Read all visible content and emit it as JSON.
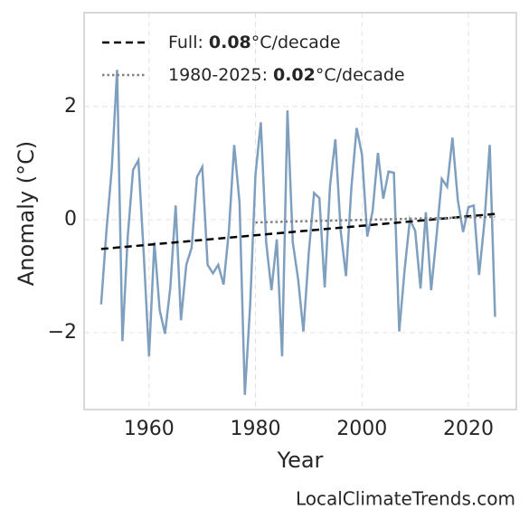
{
  "chart_data": {
    "type": "line",
    "xlabel": "Year",
    "ylabel": "Anomaly (°C)",
    "watermark": "LocalClimateTrends.com",
    "xlim": [
      1947.8,
      2029
    ],
    "ylim": [
      -3.36,
      3.66
    ],
    "xticks": [
      1960,
      1980,
      2000,
      2020
    ],
    "yticks": [
      {
        "value": -2,
        "label": "−2"
      },
      0,
      2
    ],
    "grid": true,
    "legend": "upper left",
    "x": [
      1951,
      1952,
      1953,
      1954,
      1955,
      1956,
      1957,
      1958,
      1959,
      1960,
      1961,
      1962,
      1963,
      1964,
      1965,
      1966,
      1967,
      1968,
      1969,
      1970,
      1971,
      1972,
      1973,
      1974,
      1975,
      1976,
      1977,
      1978,
      1979,
      1980,
      1981,
      1982,
      1983,
      1984,
      1985,
      1986,
      1987,
      1988,
      1989,
      1990,
      1991,
      1992,
      1993,
      1994,
      1995,
      1996,
      1997,
      1998,
      1999,
      2000,
      2001,
      2002,
      2003,
      2004,
      2005,
      2006,
      2007,
      2008,
      2009,
      2010,
      2011,
      2012,
      2013,
      2014,
      2015,
      2016,
      2017,
      2018,
      2019,
      2020,
      2021,
      2022,
      2023,
      2024,
      2025
    ],
    "values": [
      -1.5,
      -0.2,
      0.9,
      2.65,
      -2.15,
      -0.3,
      0.88,
      1.05,
      -0.6,
      -2.42,
      -0.4,
      -1.6,
      -2.02,
      -1.2,
      0.25,
      -1.78,
      -0.8,
      -0.5,
      0.75,
      0.93,
      -0.8,
      -0.95,
      -0.8,
      -1.15,
      -0.2,
      1.32,
      0.3,
      -3.1,
      -1.5,
      0.8,
      1.72,
      -0.4,
      -1.25,
      -0.35,
      -2.42,
      1.93,
      -0.4,
      -1.05,
      -1.98,
      -0.6,
      0.47,
      0.38,
      -1.2,
      0.6,
      1.42,
      -0.2,
      -1.0,
      0.55,
      1.62,
      1.15,
      -0.3,
      0.15,
      1.18,
      0.37,
      0.85,
      0.83,
      -1.98,
      -0.9,
      0.0,
      -0.2,
      -1.22,
      0.13,
      -1.25,
      -0.3,
      0.72,
      0.58,
      1.45,
      0.35,
      -0.22,
      0.22,
      0.25,
      -0.98,
      -0.05,
      1.32,
      -1.72
    ],
    "color": "#7f9fbf",
    "series": [
      {
        "label": "Full:",
        "slope": 0.08,
        "unit": "°C/decade",
        "color": "#000000",
        "style": "dashed",
        "x": [
          1951,
          2025
        ],
        "values": [
          -0.52,
          0.1
        ]
      },
      {
        "label": "1980-2025:",
        "slope": 0.02,
        "unit": "°C/decade",
        "color": "#808080",
        "style": "dotted",
        "x": [
          1980,
          2025
        ],
        "values": [
          -0.05,
          0.05
        ]
      }
    ]
  }
}
